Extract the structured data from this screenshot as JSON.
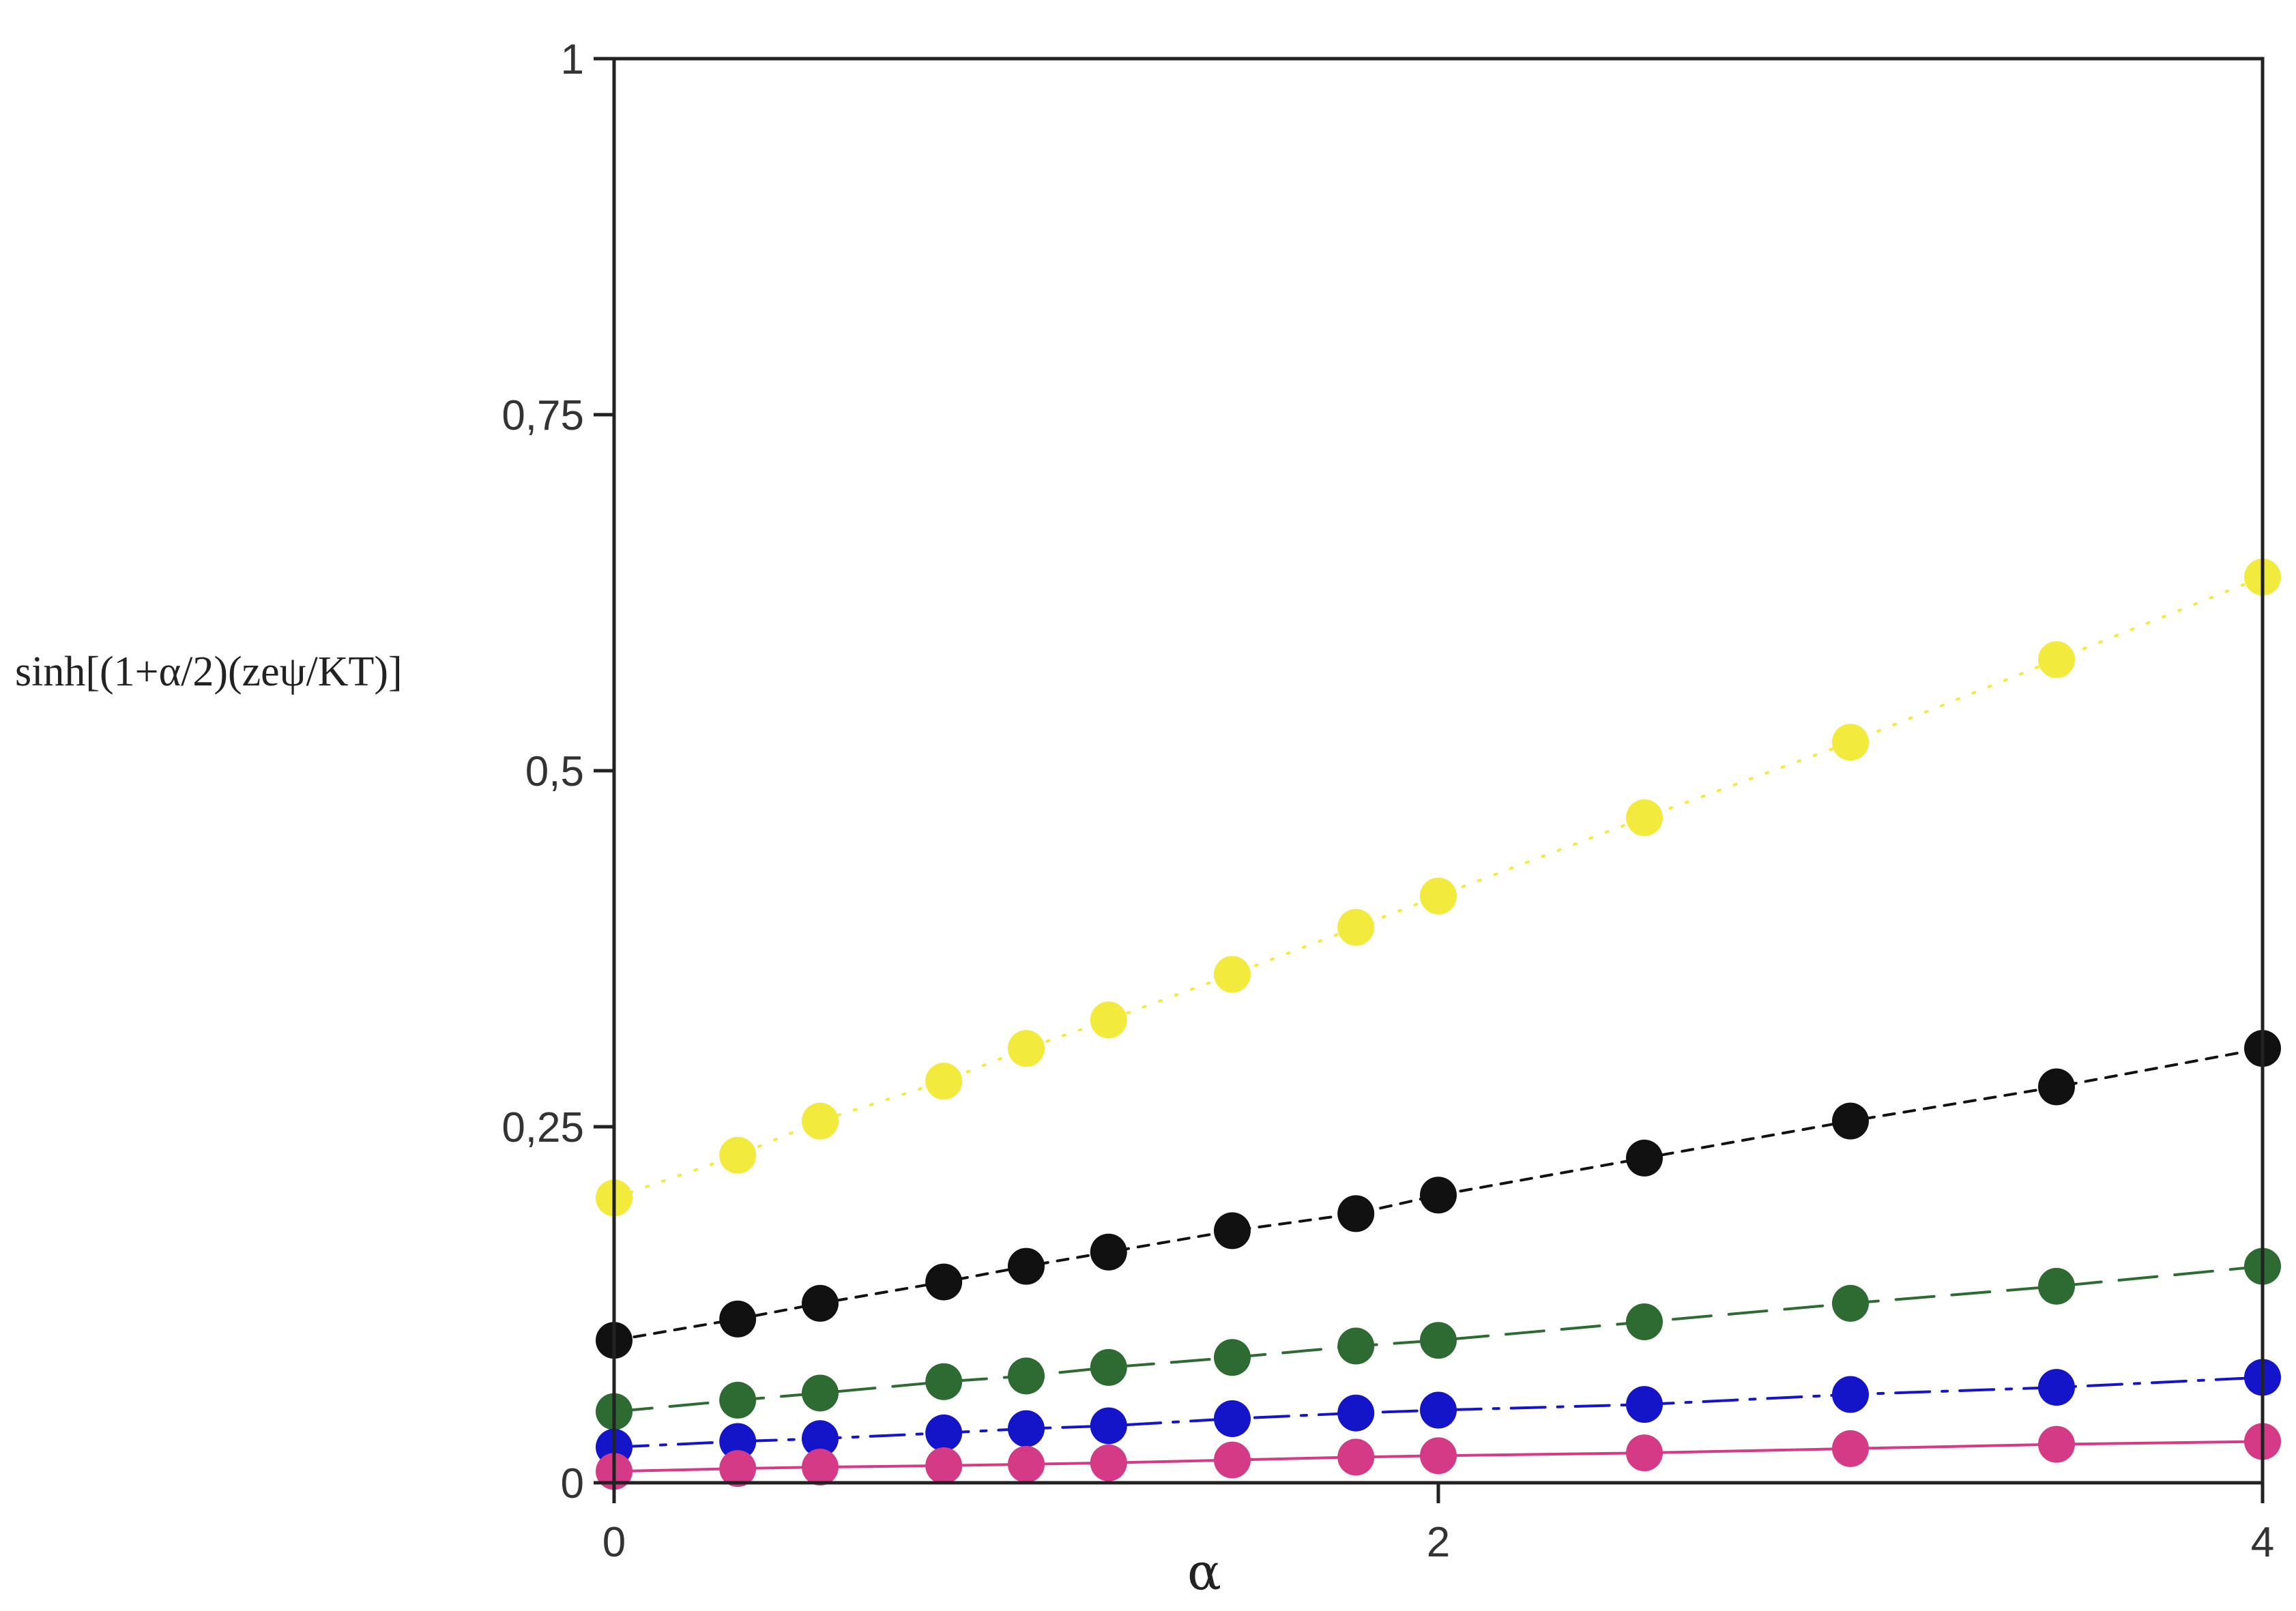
{
  "chart_data": {
    "type": "scatter",
    "title": "",
    "xlabel": "α",
    "ylabel": "sinh[(1+α/2)(zeψ/KT)]",
    "xlim": [
      0,
      4
    ],
    "ylim": [
      0,
      1
    ],
    "x_ticks": [
      {
        "value": 0,
        "label": "0"
      },
      {
        "value": 2,
        "label": "2"
      },
      {
        "value": 4,
        "label": "4"
      }
    ],
    "y_ticks": [
      {
        "value": 0,
        "label": "0"
      },
      {
        "value": 0.25,
        "label": "0,25"
      },
      {
        "value": 0.5,
        "label": "0,5"
      },
      {
        "value": 0.75,
        "label": "0,75"
      },
      {
        "value": 1,
        "label": "1"
      }
    ],
    "grid": false,
    "legend": "none",
    "x": [
      0,
      0.3,
      0.5,
      0.8,
      1.0,
      1.2,
      1.5,
      1.8,
      2.0,
      2.5,
      3.0,
      3.5,
      4.0
    ],
    "series": [
      {
        "color": "#f2ea3c",
        "line_style": "dotted",
        "values": [
          0.2,
          0.23,
          0.254,
          0.282,
          0.305,
          0.325,
          0.357,
          0.39,
          0.412,
          0.467,
          0.52,
          0.578,
          0.636
        ]
      },
      {
        "color": "#111111",
        "line_style": "dashed-short",
        "values": [
          0.1,
          0.115,
          0.126,
          0.141,
          0.152,
          0.162,
          0.177,
          0.189,
          0.202,
          0.228,
          0.254,
          0.278,
          0.305
        ]
      },
      {
        "color": "#2e6b32",
        "line_style": "dashed-long",
        "values": [
          0.05,
          0.058,
          0.063,
          0.071,
          0.075,
          0.081,
          0.088,
          0.096,
          0.1,
          0.113,
          0.126,
          0.138,
          0.152
        ]
      },
      {
        "color": "#1414c8",
        "line_style": "dash-dot",
        "values": [
          0.025,
          0.029,
          0.031,
          0.035,
          0.038,
          0.04,
          0.045,
          0.049,
          0.051,
          0.055,
          0.062,
          0.067,
          0.074
        ]
      },
      {
        "color": "#d43a86",
        "line_style": "solid",
        "values": [
          0.008,
          0.01,
          0.011,
          0.012,
          0.013,
          0.014,
          0.016,
          0.018,
          0.019,
          0.021,
          0.024,
          0.027,
          0.029
        ]
      }
    ]
  }
}
